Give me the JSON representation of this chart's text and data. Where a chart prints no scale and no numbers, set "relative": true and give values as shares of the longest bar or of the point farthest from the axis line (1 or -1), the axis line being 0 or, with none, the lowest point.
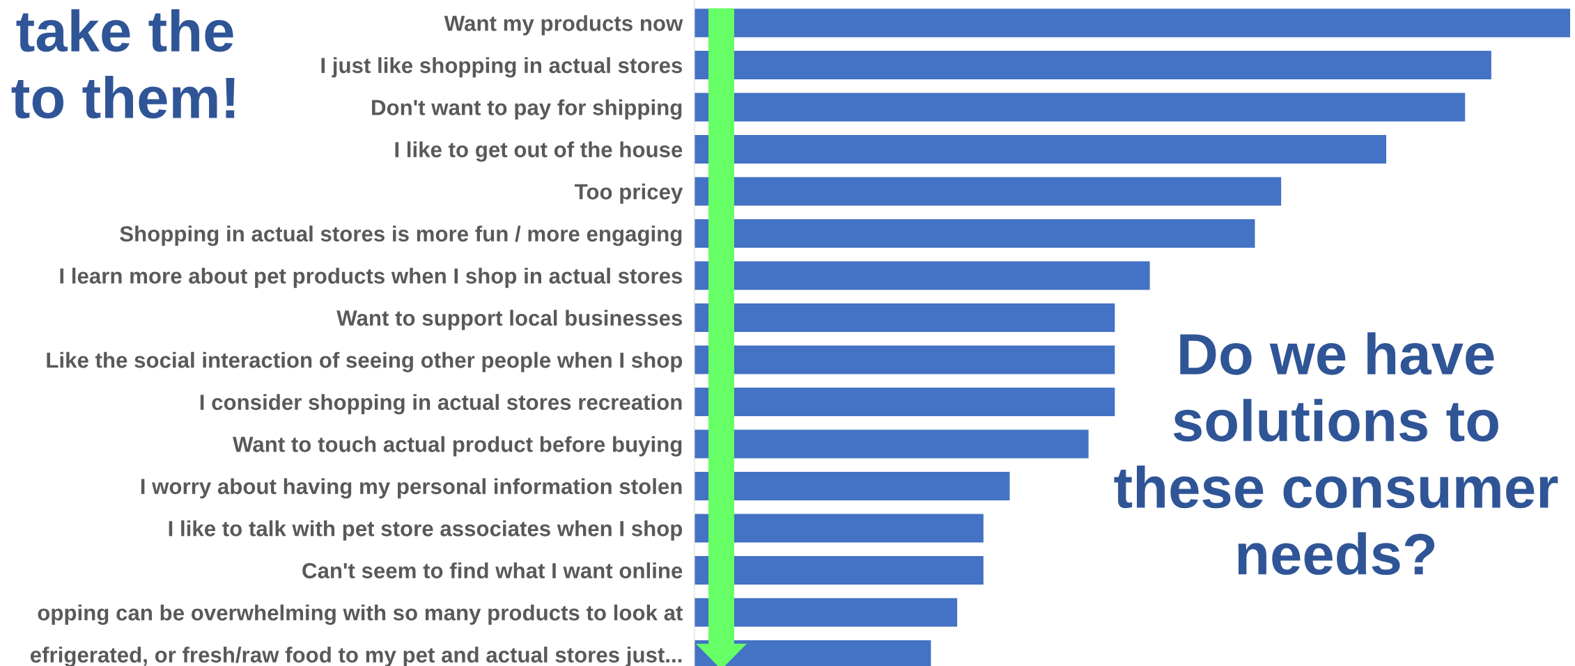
{
  "chart_data": {
    "type": "bar",
    "orientation": "horizontal",
    "relative": true,
    "categories": [
      "Want my products now",
      "I just like shopping in actual stores",
      "Don't want to pay for shipping",
      "I like to get out of the house",
      "Too pricey",
      "Shopping in actual stores is more fun / more engaging",
      "I learn more about pet products when I shop in actual stores",
      "Want to support local businesses",
      "Like the social interaction of seeing other people when I shop",
      "I consider shopping in actual stores recreation",
      "Want to touch actual product before buying",
      "I worry about having my personal information stolen",
      "I like to talk with pet store associates when I shop",
      "Can't seem to find what I want online",
      "opping can be overwhelming with so many products to look at",
      "efrigerated, or fresh/raw food to my pet and actual stores just..."
    ],
    "values": [
      1,
      0.91,
      0.88,
      0.79,
      0.67,
      0.64,
      0.52,
      0.48,
      0.48,
      0.48,
      0.45,
      0.36,
      0.33,
      0.33,
      0.3,
      0.27
    ],
    "color": "#4472c4",
    "annotations": [
      "take the\nto them!",
      "Do we have\nsolutions to\nthese consumer\nneeds?"
    ]
  }
}
